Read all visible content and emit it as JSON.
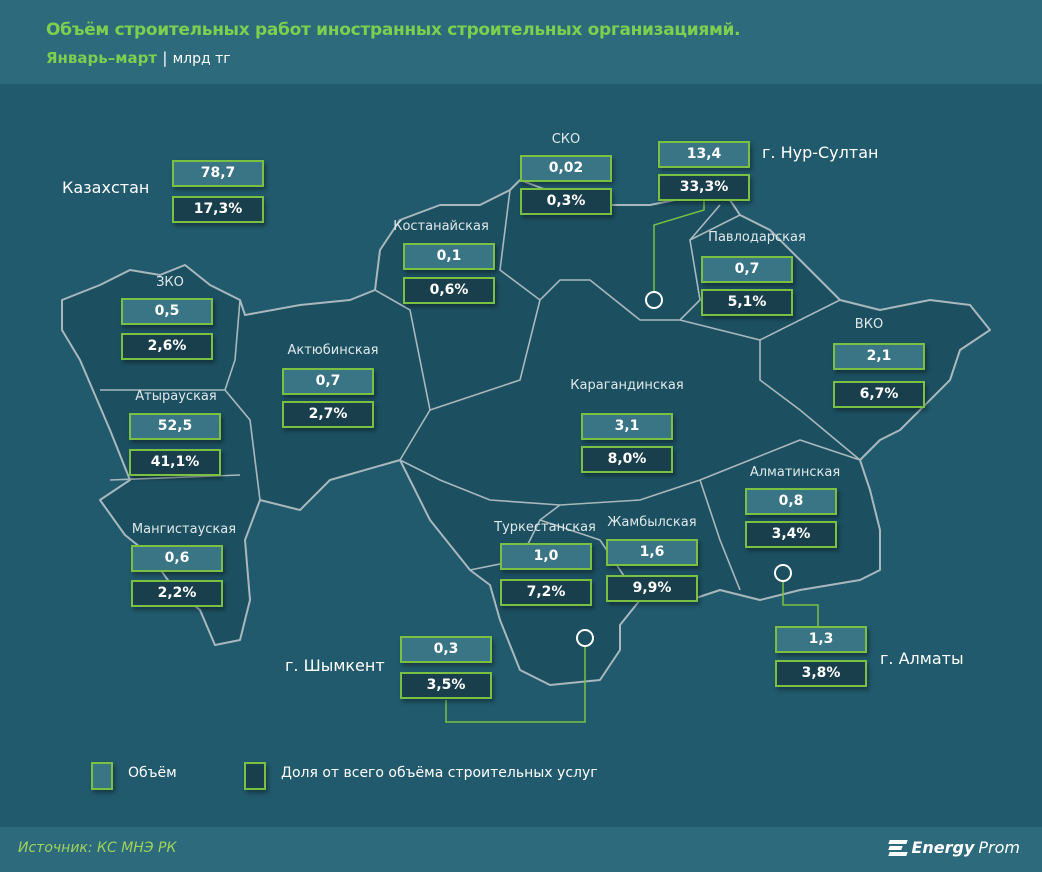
{
  "header": {
    "title": "Объём строительных работ иностранных строительных организациямй.",
    "period": "Январь–март",
    "separator": "|",
    "unit": "млрд тг"
  },
  "colors": {
    "accent": "#7ac143",
    "title": "#7dcf4f",
    "background": "#215a6c",
    "volume_box": "#3a7585",
    "share_box": "#1a3f4c"
  },
  "regions": {
    "kazakhstan": {
      "name": "Казахстан",
      "volume": "78,7",
      "share": "17,3%"
    },
    "sko": {
      "name": "СКО",
      "volume": "0,02",
      "share": "0,3%"
    },
    "nur_sultan": {
      "name": "г. Нур-Султан",
      "volume": "13,4",
      "share": "33,3%"
    },
    "kostanay": {
      "name": "Костанайская",
      "volume": "0,1",
      "share": "0,6%"
    },
    "pavlodar": {
      "name": "Павлодарская",
      "volume": "0,7",
      "share": "5,1%"
    },
    "zko": {
      "name": "ЗКО",
      "volume": "0,5",
      "share": "2,6%"
    },
    "vko": {
      "name": "ВКО",
      "volume": "2,1",
      "share": "6,7%"
    },
    "aktobe": {
      "name": "Актюбинская",
      "volume": "0,7",
      "share": "2,7%"
    },
    "atyrau": {
      "name": "Атырауская",
      "volume": "52,5",
      "share": "41,1%"
    },
    "karaganda": {
      "name": "Карагандинская",
      "volume": "3,1",
      "share": "8,0%"
    },
    "almaty_region": {
      "name": "Алматинская",
      "volume": "0,8",
      "share": "3,4%"
    },
    "mangistau": {
      "name": "Мангистауская",
      "volume": "0,6",
      "share": "2,2%"
    },
    "turkestan": {
      "name": "Туркестанская",
      "volume": "1,0",
      "share": "7,2%"
    },
    "zhambyl": {
      "name": "Жамбылская",
      "volume": "1,6",
      "share": "9,9%"
    },
    "almaty_city": {
      "name": "г. Алматы",
      "volume": "1,3",
      "share": "3,8%"
    },
    "shymkent": {
      "name": "г. Шымкент",
      "volume": "0,3",
      "share": "3,5%"
    }
  },
  "legend": {
    "volume": "Объём",
    "share": "Доля от всего объёма строительных услуг"
  },
  "footer": {
    "source": "Источник: КС МНЭ РК",
    "logo_bold": "Energy",
    "logo_light": "Prom"
  }
}
